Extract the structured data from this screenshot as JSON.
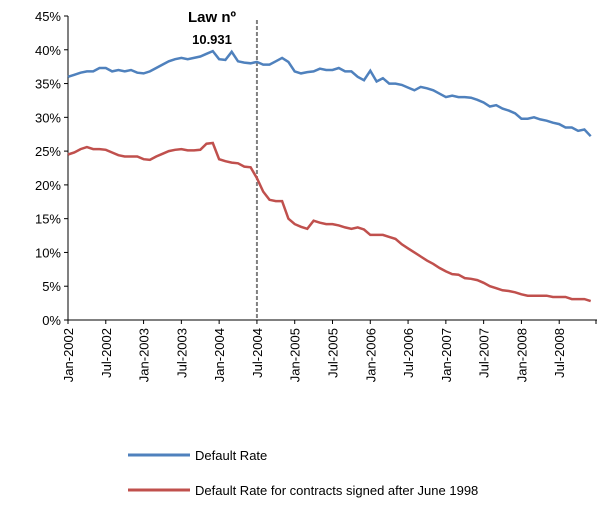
{
  "chart_data": {
    "type": "line",
    "annotation": [
      "Law nº",
      "10.931"
    ],
    "categories": [
      "Jan-2002",
      null,
      null,
      null,
      null,
      null,
      "Jul-2002",
      null,
      null,
      null,
      null,
      null,
      "Jan-2003",
      null,
      null,
      null,
      null,
      null,
      "Jul-2003",
      null,
      null,
      null,
      null,
      null,
      "Jan-2004",
      null,
      null,
      null,
      null,
      null,
      "Jul-2004",
      null,
      null,
      null,
      null,
      null,
      "Jan-2005",
      null,
      null,
      null,
      null,
      null,
      "Jul-2005",
      null,
      null,
      null,
      null,
      null,
      "Jan-2006",
      null,
      null,
      null,
      null,
      null,
      "Jul-2006",
      null,
      null,
      null,
      null,
      null,
      "Jan-2007",
      null,
      null,
      null,
      null,
      null,
      "Jul-2007",
      null,
      null,
      null,
      null,
      null,
      "Jan-2008",
      null,
      null,
      null,
      null,
      null,
      "Jul-2008",
      null,
      null,
      null,
      null,
      null
    ],
    "series": [
      {
        "name": "Default Rate",
        "color": "#4f81bd",
        "values": [
          36,
          36.3,
          36.6,
          36.8,
          36.8,
          37.3,
          37.3,
          36.8,
          37,
          36.8,
          37,
          36.6,
          36.5,
          36.8,
          37.3,
          37.8,
          38.3,
          38.6,
          38.8,
          38.6,
          38.8,
          39,
          39.4,
          39.8,
          38.6,
          38.5,
          39.7,
          38.3,
          38.1,
          38,
          38.2,
          37.8,
          37.8,
          38.3,
          38.8,
          38.2,
          36.8,
          36.5,
          36.7,
          36.8,
          37.2,
          37,
          37,
          37.3,
          36.8,
          36.8,
          36,
          35.5,
          36.9,
          35.3,
          35.8,
          35,
          35,
          34.8,
          34.4,
          34,
          34.5,
          34.3,
          34,
          33.5,
          33,
          33.2,
          33,
          33,
          32.9,
          32.6,
          32.2,
          31.6,
          31.8,
          31.3,
          31,
          30.6,
          29.8,
          29.8,
          30,
          29.7,
          29.5,
          29.2,
          29,
          28.5,
          28.5,
          28,
          28.2,
          27.2
        ]
      },
      {
        "name": "Default Rate for contracts signed after June 1998",
        "color": "#c0504d",
        "values": [
          24.5,
          24.8,
          25.3,
          25.6,
          25.3,
          25.3,
          25.2,
          24.8,
          24.4,
          24.2,
          24.2,
          24.2,
          23.8,
          23.7,
          24.2,
          24.6,
          25,
          25.2,
          25.3,
          25.1,
          25.1,
          25.2,
          26.1,
          26.2,
          23.8,
          23.5,
          23.3,
          23.2,
          22.7,
          22.6,
          21,
          19,
          17.8,
          17.6,
          17.6,
          15,
          14.2,
          13.8,
          13.5,
          14.7,
          14.4,
          14.2,
          14.2,
          14,
          13.7,
          13.5,
          13.7,
          13.4,
          12.6,
          12.6,
          12.6,
          12.3,
          12,
          11.2,
          10.6,
          10,
          9.4,
          8.8,
          8.3,
          7.7,
          7.2,
          6.8,
          6.7,
          6.2,
          6.1,
          5.9,
          5.5,
          5,
          4.7,
          4.4,
          4.3,
          4.1,
          3.8,
          3.6,
          3.6,
          3.6,
          3.6,
          3.4,
          3.4,
          3.4,
          3.1,
          3.1,
          3.1,
          2.8
        ]
      }
    ],
    "ylim": [
      0,
      45
    ],
    "yticks": [
      {
        "value": 0,
        "label": "0%"
      },
      {
        "value": 5,
        "label": "5%"
      },
      {
        "value": 10,
        "label": "10%"
      },
      {
        "value": 15,
        "label": "15%"
      },
      {
        "value": 20,
        "label": "20%"
      },
      {
        "value": 25,
        "label": "25%"
      },
      {
        "value": 30,
        "label": "30%"
      },
      {
        "value": 35,
        "label": "35%"
      },
      {
        "value": 40,
        "label": "40%"
      },
      {
        "value": 45,
        "label": "45%"
      }
    ],
    "grid": false,
    "legend": "bottom"
  }
}
